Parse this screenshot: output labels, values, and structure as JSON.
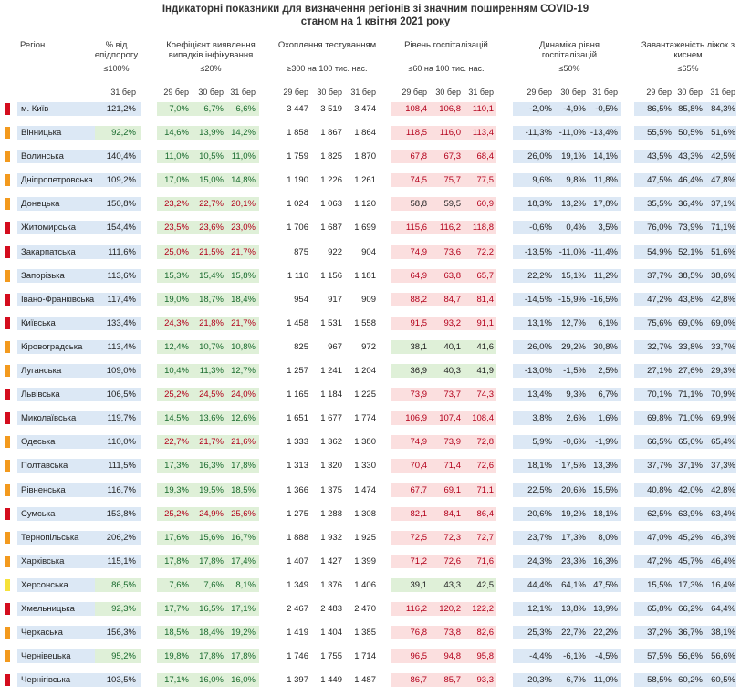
{
  "title_line1": "Індикаторні показники для визначення регіонів зі значним поширенням COVID-19",
  "title_line2": "станом на 1 квітня 2021 року",
  "headers": {
    "region": "Регіон",
    "threshold": "% від епідпорогу",
    "threshold_limit": "≤100%",
    "detection": "Коефіцієнт виявлення випадків інфікування",
    "detection_limit": "≤20%",
    "testing": "Охоплення тестуванням",
    "testing_limit": "≥300 на 100 тис. нас.",
    "hosp": "Рівень госпіталізацій",
    "hosp_limit": "≤60 на 100 тис. нас.",
    "dyn": "Динаміка рівня госпіталізацій",
    "dyn_limit": "≤50%",
    "oxy": "Завантаженість ліжок з киснем",
    "oxy_limit": "≤65%"
  },
  "days": {
    "d29": "29 бер",
    "d30": "30 бер",
    "d31": "31 бер"
  },
  "colors": {
    "red": "#d40d1e",
    "orange": "#f39a1e",
    "yellow": "#f6e23a",
    "band_blue": "#dce8f5",
    "band_green": "#dff0d8",
    "band_red": "#fbdfdf"
  },
  "rows": [
    {
      "status": "red",
      "name": "м. Київ",
      "thr": "121,2%",
      "det": [
        "7,0%",
        "6,7%",
        "6,6%"
      ],
      "test": [
        "3 447",
        "3 519",
        "3 474"
      ],
      "hosp": [
        "108,4",
        "106,8",
        "110,1"
      ],
      "dyn": [
        "-2,0%",
        "-4,9%",
        "-0,5%"
      ],
      "oxy": [
        "86,5%",
        "85,8%",
        "84,3%"
      ]
    },
    {
      "status": "orange",
      "name": "Вінницька",
      "thr": "92,2%",
      "det": [
        "14,6%",
        "13,9%",
        "14,2%"
      ],
      "test": [
        "1 858",
        "1 867",
        "1 864"
      ],
      "hosp": [
        "118,5",
        "116,0",
        "113,4"
      ],
      "dyn": [
        "-11,3%",
        "-11,0%",
        "-13,4%"
      ],
      "oxy": [
        "55,5%",
        "50,5%",
        "51,6%"
      ]
    },
    {
      "status": "orange",
      "name": "Волинська",
      "thr": "140,4%",
      "det": [
        "11,0%",
        "10,5%",
        "11,0%"
      ],
      "test": [
        "1 759",
        "1 825",
        "1 870"
      ],
      "hosp": [
        "67,8",
        "67,3",
        "68,4"
      ],
      "dyn": [
        "26,0%",
        "19,1%",
        "14,1%"
      ],
      "oxy": [
        "43,5%",
        "43,3%",
        "42,5%"
      ]
    },
    {
      "status": "orange",
      "name": "Дніпропетровська",
      "thr": "109,2%",
      "det": [
        "17,0%",
        "15,0%",
        "14,8%"
      ],
      "test": [
        "1 190",
        "1 226",
        "1 261"
      ],
      "hosp": [
        "74,5",
        "75,7",
        "77,5"
      ],
      "dyn": [
        "9,6%",
        "9,8%",
        "11,8%"
      ],
      "oxy": [
        "47,5%",
        "46,4%",
        "47,8%"
      ]
    },
    {
      "status": "orange",
      "name": "Донецька",
      "thr": "150,8%",
      "det": [
        "23,2%",
        "22,7%",
        "20,1%"
      ],
      "test": [
        "1 024",
        "1 063",
        "1 120"
      ],
      "hosp": [
        "58,8",
        "59,5",
        "60,9"
      ],
      "dyn": [
        "18,3%",
        "13,2%",
        "17,8%"
      ],
      "oxy": [
        "35,5%",
        "36,4%",
        "37,1%"
      ]
    },
    {
      "status": "red",
      "name": "Житомирська",
      "thr": "154,4%",
      "det": [
        "23,5%",
        "23,6%",
        "23,0%"
      ],
      "test": [
        "1 706",
        "1 687",
        "1 699"
      ],
      "hosp": [
        "115,6",
        "116,2",
        "118,8"
      ],
      "dyn": [
        "-0,6%",
        "0,4%",
        "3,5%"
      ],
      "oxy": [
        "76,0%",
        "73,9%",
        "71,1%"
      ]
    },
    {
      "status": "red",
      "name": "Закарпатська",
      "thr": "111,6%",
      "det": [
        "25,0%",
        "21,5%",
        "21,7%"
      ],
      "test": [
        "875",
        "922",
        "904"
      ],
      "hosp": [
        "74,9",
        "73,6",
        "72,2"
      ],
      "dyn": [
        "-13,5%",
        "-11,0%",
        "-11,4%"
      ],
      "oxy": [
        "54,9%",
        "52,1%",
        "51,6%"
      ]
    },
    {
      "status": "orange",
      "name": "Запорізька",
      "thr": "113,6%",
      "det": [
        "15,3%",
        "15,4%",
        "15,8%"
      ],
      "test": [
        "1 110",
        "1 156",
        "1 181"
      ],
      "hosp": [
        "64,9",
        "63,8",
        "65,7"
      ],
      "dyn": [
        "22,2%",
        "15,1%",
        "11,2%"
      ],
      "oxy": [
        "37,7%",
        "38,5%",
        "38,6%"
      ]
    },
    {
      "status": "red",
      "name": "Івано-Франківська",
      "thr": "117,4%",
      "det": [
        "19,0%",
        "18,7%",
        "18,4%"
      ],
      "test": [
        "954",
        "917",
        "909"
      ],
      "hosp": [
        "88,2",
        "84,7",
        "81,4"
      ],
      "dyn": [
        "-14,5%",
        "-15,9%",
        "-16,5%"
      ],
      "oxy": [
        "47,2%",
        "43,8%",
        "42,8%"
      ]
    },
    {
      "status": "red",
      "name": "Київська",
      "thr": "133,4%",
      "det": [
        "24,3%",
        "21,8%",
        "21,7%"
      ],
      "test": [
        "1 458",
        "1 531",
        "1 558"
      ],
      "hosp": [
        "91,5",
        "93,2",
        "91,1"
      ],
      "dyn": [
        "13,1%",
        "12,7%",
        "6,1%"
      ],
      "oxy": [
        "75,6%",
        "69,0%",
        "69,0%"
      ]
    },
    {
      "status": "orange",
      "name": "Кіровоградська",
      "thr": "113,4%",
      "det": [
        "12,4%",
        "10,7%",
        "10,8%"
      ],
      "test": [
        "825",
        "967",
        "972"
      ],
      "hosp": [
        "38,1",
        "40,1",
        "41,6"
      ],
      "dyn": [
        "26,0%",
        "29,2%",
        "30,8%"
      ],
      "oxy": [
        "32,7%",
        "33,8%",
        "33,7%"
      ]
    },
    {
      "status": "orange",
      "name": "Луганська",
      "thr": "109,0%",
      "det": [
        "10,4%",
        "11,3%",
        "12,7%"
      ],
      "test": [
        "1 257",
        "1 241",
        "1 204"
      ],
      "hosp": [
        "36,9",
        "40,3",
        "41,9"
      ],
      "dyn": [
        "-13,0%",
        "-1,5%",
        "2,5%"
      ],
      "oxy": [
        "27,1%",
        "27,6%",
        "29,3%"
      ]
    },
    {
      "status": "red",
      "name": "Львівська",
      "thr": "106,5%",
      "det": [
        "25,2%",
        "24,5%",
        "24,0%"
      ],
      "test": [
        "1 165",
        "1 184",
        "1 225"
      ],
      "hosp": [
        "73,9",
        "73,7",
        "74,3"
      ],
      "dyn": [
        "13,4%",
        "9,3%",
        "6,7%"
      ],
      "oxy": [
        "70,1%",
        "71,1%",
        "70,9%"
      ]
    },
    {
      "status": "red",
      "name": "Миколаївська",
      "thr": "119,7%",
      "det": [
        "14,5%",
        "13,6%",
        "12,6%"
      ],
      "test": [
        "1 651",
        "1 677",
        "1 774"
      ],
      "hosp": [
        "106,9",
        "107,4",
        "108,4"
      ],
      "dyn": [
        "3,8%",
        "2,6%",
        "1,6%"
      ],
      "oxy": [
        "69,8%",
        "71,0%",
        "69,9%"
      ]
    },
    {
      "status": "orange",
      "name": "Одеська",
      "thr": "110,0%",
      "det": [
        "22,7%",
        "21,7%",
        "21,6%"
      ],
      "test": [
        "1 333",
        "1 362",
        "1 380"
      ],
      "hosp": [
        "74,9",
        "73,9",
        "72,8"
      ],
      "dyn": [
        "5,9%",
        "-0,6%",
        "-1,9%"
      ],
      "oxy": [
        "66,5%",
        "65,6%",
        "65,4%"
      ]
    },
    {
      "status": "orange",
      "name": "Полтавська",
      "thr": "111,5%",
      "det": [
        "17,3%",
        "16,3%",
        "17,8%"
      ],
      "test": [
        "1 313",
        "1 320",
        "1 330"
      ],
      "hosp": [
        "70,4",
        "71,4",
        "72,6"
      ],
      "dyn": [
        "18,1%",
        "17,5%",
        "13,3%"
      ],
      "oxy": [
        "37,7%",
        "37,1%",
        "37,3%"
      ]
    },
    {
      "status": "orange",
      "name": "Рівненська",
      "thr": "116,7%",
      "det": [
        "19,3%",
        "19,5%",
        "18,5%"
      ],
      "test": [
        "1 366",
        "1 375",
        "1 474"
      ],
      "hosp": [
        "67,7",
        "69,1",
        "71,1"
      ],
      "dyn": [
        "22,5%",
        "20,6%",
        "15,5%"
      ],
      "oxy": [
        "40,8%",
        "42,0%",
        "42,8%"
      ]
    },
    {
      "status": "red",
      "name": "Сумська",
      "thr": "153,8%",
      "det": [
        "25,2%",
        "24,9%",
        "25,6%"
      ],
      "test": [
        "1 275",
        "1 288",
        "1 308"
      ],
      "hosp": [
        "82,1",
        "84,1",
        "86,4"
      ],
      "dyn": [
        "20,6%",
        "19,2%",
        "18,1%"
      ],
      "oxy": [
        "62,5%",
        "63,9%",
        "63,4%"
      ]
    },
    {
      "status": "orange",
      "name": "Тернопільська",
      "thr": "206,2%",
      "det": [
        "17,6%",
        "15,6%",
        "16,7%"
      ],
      "test": [
        "1 888",
        "1 932",
        "1 925"
      ],
      "hosp": [
        "72,5",
        "72,3",
        "72,7"
      ],
      "dyn": [
        "23,7%",
        "17,3%",
        "8,0%"
      ],
      "oxy": [
        "47,0%",
        "45,2%",
        "46,3%"
      ]
    },
    {
      "status": "orange",
      "name": "Харківська",
      "thr": "115,1%",
      "det": [
        "17,8%",
        "17,8%",
        "17,4%"
      ],
      "test": [
        "1 407",
        "1 427",
        "1 399"
      ],
      "hosp": [
        "71,2",
        "72,6",
        "71,6"
      ],
      "dyn": [
        "24,3%",
        "23,3%",
        "16,3%"
      ],
      "oxy": [
        "47,2%",
        "45,7%",
        "46,4%"
      ]
    },
    {
      "status": "yellow",
      "name": "Херсонська",
      "thr": "86,5%",
      "det": [
        "7,6%",
        "7,6%",
        "8,1%"
      ],
      "test": [
        "1 349",
        "1 376",
        "1 406"
      ],
      "hosp": [
        "39,1",
        "43,3",
        "42,5"
      ],
      "dyn": [
        "44,4%",
        "64,1%",
        "47,5%"
      ],
      "oxy": [
        "15,5%",
        "17,3%",
        "16,4%"
      ]
    },
    {
      "status": "red",
      "name": "Хмельницька",
      "thr": "92,3%",
      "det": [
        "17,7%",
        "16,5%",
        "17,1%"
      ],
      "test": [
        "2 467",
        "2 483",
        "2 470"
      ],
      "hosp": [
        "116,2",
        "120,2",
        "122,2"
      ],
      "dyn": [
        "12,1%",
        "13,8%",
        "13,9%"
      ],
      "oxy": [
        "65,8%",
        "66,2%",
        "64,4%"
      ]
    },
    {
      "status": "orange",
      "name": "Черкаська",
      "thr": "156,3%",
      "det": [
        "18,5%",
        "18,4%",
        "19,2%"
      ],
      "test": [
        "1 419",
        "1 404",
        "1 385"
      ],
      "hosp": [
        "76,8",
        "73,8",
        "82,6"
      ],
      "dyn": [
        "25,3%",
        "22,7%",
        "22,2%"
      ],
      "oxy": [
        "37,2%",
        "36,7%",
        "38,1%"
      ]
    },
    {
      "status": "orange",
      "name": "Чернівецька",
      "thr": "95,2%",
      "det": [
        "19,8%",
        "17,8%",
        "17,8%"
      ],
      "test": [
        "1 746",
        "1 755",
        "1 714"
      ],
      "hosp": [
        "96,5",
        "94,8",
        "95,8"
      ],
      "dyn": [
        "-4,4%",
        "-6,1%",
        "-4,5%"
      ],
      "oxy": [
        "57,5%",
        "56,6%",
        "56,6%"
      ]
    },
    {
      "status": "red",
      "name": "Чернігівська",
      "thr": "103,5%",
      "det": [
        "17,1%",
        "16,0%",
        "16,0%"
      ],
      "test": [
        "1 397",
        "1 449",
        "1 487"
      ],
      "hosp": [
        "86,7",
        "85,7",
        "93,3"
      ],
      "dyn": [
        "20,3%",
        "6,7%",
        "11,0%"
      ],
      "oxy": [
        "58,5%",
        "60,2%",
        "60,5%"
      ]
    }
  ]
}
